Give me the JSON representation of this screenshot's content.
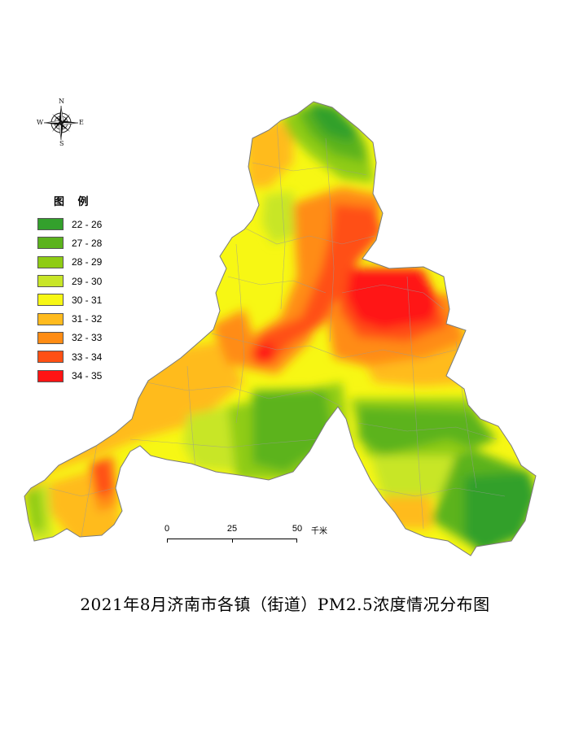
{
  "title": "2021年8月济南市各镇（街道）PM2.5浓度情况分布图",
  "compass": {
    "n": "N",
    "s": "S",
    "e": "E",
    "w": "W"
  },
  "legend": {
    "title": "图 例",
    "items": [
      {
        "label": "22 - 26",
        "color": "#33a02c"
      },
      {
        "label": "27 - 28",
        "color": "#5cb31c"
      },
      {
        "label": "28 - 29",
        "color": "#8fcc14"
      },
      {
        "label": "29 - 30",
        "color": "#c8e628"
      },
      {
        "label": "30 - 31",
        "color": "#f7f714"
      },
      {
        "label": "31 - 32",
        "color": "#ffbb1e"
      },
      {
        "label": "32 - 33",
        "color": "#ff8c14"
      },
      {
        "label": "33 - 34",
        "color": "#ff5014"
      },
      {
        "label": "34 - 35",
        "color": "#ff1414"
      }
    ]
  },
  "scale_bar": {
    "ticks": [
      "0",
      "25",
      "50"
    ],
    "unit": "千米"
  }
}
